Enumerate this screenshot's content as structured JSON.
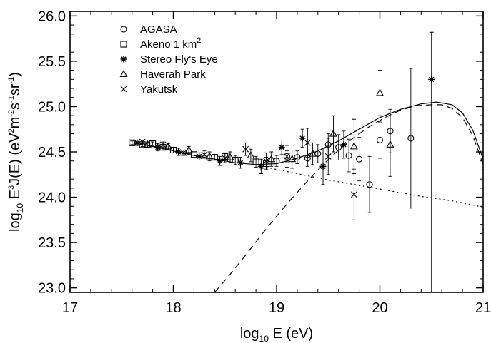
{
  "chart_data": {
    "type": "scatter",
    "title": "",
    "x_axis": {
      "label_main": "log",
      "label_sub": "10",
      "label_rest": " E (eV)",
      "range": [
        17,
        21
      ],
      "ticks": [
        17,
        18,
        19,
        20,
        21
      ],
      "tick_labels": [
        "17",
        "18",
        "19",
        "20",
        "21"
      ]
    },
    "y_axis": {
      "label_parts": [
        {
          "t": "log",
          "s": "n"
        },
        {
          "t": "10",
          "s": "sub"
        },
        {
          "t": " E",
          "s": "n"
        },
        {
          "t": "3",
          "s": "sup"
        },
        {
          "t": "J(E) (eV",
          "s": "n"
        },
        {
          "t": "2",
          "s": "sup"
        },
        {
          "t": "m",
          "s": "n"
        },
        {
          "t": "-2",
          "s": "sup"
        },
        {
          "t": "s",
          "s": "n"
        },
        {
          "t": "-1",
          "s": "sup"
        },
        {
          "t": "sr",
          "s": "n"
        },
        {
          "t": "-1",
          "s": "sup"
        },
        {
          "t": ")",
          "s": "n"
        }
      ],
      "range": [
        22.95,
        26.05
      ],
      "ticks": [
        23.0,
        23.5,
        24.0,
        24.5,
        25.0,
        25.5,
        26.0
      ],
      "tick_labels": [
        "23.0",
        "23.5",
        "24.0",
        "24.5",
        "25.0",
        "25.5",
        "26.0"
      ]
    },
    "grid": false,
    "legend_position": "top-left",
    "legend": [
      {
        "key": "agasa",
        "marker": "circle",
        "label": "AGASA"
      },
      {
        "key": "akeno",
        "marker": "square",
        "label": "Akeno 1 km",
        "label_sup": "2"
      },
      {
        "key": "stereo",
        "marker": "asterisk",
        "label": "Stereo Fly's Eye"
      },
      {
        "key": "haverah",
        "marker": "triangle",
        "label": "Haverah Park"
      },
      {
        "key": "yakutsk",
        "marker": "cross",
        "label": "Yakutsk"
      }
    ],
    "series": [
      {
        "key": "akeno",
        "marker": "square",
        "points": [
          {
            "x": 17.6,
            "y": 24.6,
            "err": 0.02
          },
          {
            "x": 17.7,
            "y": 24.58,
            "err": 0.02
          },
          {
            "x": 17.8,
            "y": 24.59,
            "err": 0.02
          },
          {
            "x": 17.9,
            "y": 24.55,
            "err": 0.03
          },
          {
            "x": 18.0,
            "y": 24.52,
            "err": 0.03
          },
          {
            "x": 18.2,
            "y": 24.47,
            "err": 0.03
          },
          {
            "x": 18.4,
            "y": 24.44,
            "err": 0.03
          },
          {
            "x": 18.5,
            "y": 24.45,
            "err": 0.04
          },
          {
            "x": 18.6,
            "y": 24.41,
            "err": 0.05
          },
          {
            "x": 18.8,
            "y": 24.39,
            "err": 0.06
          },
          {
            "x": 18.9,
            "y": 24.37,
            "err": 0.07
          }
        ]
      },
      {
        "key": "agasa",
        "marker": "circle",
        "points": [
          {
            "x": 19.0,
            "y": 24.4,
            "err": 0.06
          },
          {
            "x": 19.1,
            "y": 24.45,
            "err": 0.06
          },
          {
            "x": 19.2,
            "y": 24.44,
            "err": 0.07
          },
          {
            "x": 19.3,
            "y": 24.43,
            "err": 0.09
          },
          {
            "x": 19.4,
            "y": 24.48,
            "err": 0.1
          },
          {
            "x": 19.5,
            "y": 24.58,
            "err": 0.12
          },
          {
            "x": 19.6,
            "y": 24.55,
            "err": 0.14
          },
          {
            "x": 19.7,
            "y": 24.46,
            "err": 0.18
          },
          {
            "x": 19.8,
            "y": 24.42,
            "err": 0.24
          },
          {
            "x": 19.9,
            "y": 24.14,
            "err": 0.31
          },
          {
            "x": 20.0,
            "y": 24.63,
            "err": 0.2
          },
          {
            "x": 20.1,
            "y": 24.73,
            "err": 0.24
          },
          {
            "x": 20.3,
            "y": 24.65,
            "err": 0.77
          }
        ]
      },
      {
        "key": "stereo",
        "marker": "asterisk",
        "points": [
          {
            "x": 17.65,
            "y": 24.6,
            "err": 0.03
          },
          {
            "x": 17.85,
            "y": 24.55,
            "err": 0.04
          },
          {
            "x": 18.05,
            "y": 24.5,
            "err": 0.04
          },
          {
            "x": 18.25,
            "y": 24.45,
            "err": 0.04
          },
          {
            "x": 18.45,
            "y": 24.4,
            "err": 0.05
          },
          {
            "x": 18.65,
            "y": 24.38,
            "err": 0.06
          },
          {
            "x": 18.85,
            "y": 24.34,
            "err": 0.08
          },
          {
            "x": 19.05,
            "y": 24.55,
            "err": 0.08
          },
          {
            "x": 19.25,
            "y": 24.65,
            "err": 0.1
          },
          {
            "x": 19.45,
            "y": 24.34,
            "err": 0.2
          },
          {
            "x": 19.65,
            "y": 24.58,
            "err": 0.15
          },
          {
            "x": 20.5,
            "y": 25.3,
            "err": 0.0
          }
        ]
      },
      {
        "key": "haverah",
        "marker": "triangle",
        "points": [
          {
            "x": 17.75,
            "y": 24.58,
            "err": 0.03
          },
          {
            "x": 17.95,
            "y": 24.56,
            "err": 0.03
          },
          {
            "x": 18.15,
            "y": 24.52,
            "err": 0.04
          },
          {
            "x": 18.35,
            "y": 24.45,
            "err": 0.05
          },
          {
            "x": 18.55,
            "y": 24.44,
            "err": 0.06
          },
          {
            "x": 18.75,
            "y": 24.46,
            "err": 0.07
          },
          {
            "x": 18.95,
            "y": 24.42,
            "err": 0.08
          },
          {
            "x": 19.15,
            "y": 24.42,
            "err": 0.1
          },
          {
            "x": 19.35,
            "y": 24.48,
            "err": 0.12
          },
          {
            "x": 19.55,
            "y": 24.7,
            "err": 0.2
          },
          {
            "x": 19.75,
            "y": 24.56,
            "err": 0.3
          },
          {
            "x": 20.0,
            "y": 25.15,
            "err": 0.25
          },
          {
            "x": 20.1,
            "y": 24.58,
            "err": 0.35
          }
        ]
      },
      {
        "key": "yakutsk",
        "marker": "cross",
        "points": [
          {
            "x": 17.7,
            "y": 24.61,
            "err": 0.02
          },
          {
            "x": 17.9,
            "y": 24.58,
            "err": 0.03
          },
          {
            "x": 18.1,
            "y": 24.49,
            "err": 0.03
          },
          {
            "x": 18.3,
            "y": 24.47,
            "err": 0.04
          },
          {
            "x": 18.5,
            "y": 24.43,
            "err": 0.05
          },
          {
            "x": 18.7,
            "y": 24.53,
            "err": 0.07
          },
          {
            "x": 18.9,
            "y": 24.4,
            "err": 0.09
          },
          {
            "x": 19.1,
            "y": 24.45,
            "err": 0.12
          },
          {
            "x": 19.3,
            "y": 24.6,
            "err": 0.16
          },
          {
            "x": 19.5,
            "y": 24.45,
            "err": 0.2
          },
          {
            "x": 19.75,
            "y": 24.03,
            "err": 0.28
          }
        ]
      }
    ],
    "curves": [
      {
        "key": "dotted",
        "dash": "2,4",
        "points": [
          [
            18.9,
            24.33
          ],
          [
            19.2,
            24.26
          ],
          [
            19.5,
            24.19
          ],
          [
            19.8,
            24.13
          ],
          [
            20.1,
            24.07
          ],
          [
            20.4,
            24.01
          ],
          [
            20.7,
            23.96
          ],
          [
            21.0,
            23.89
          ]
        ]
      },
      {
        "key": "dashed",
        "dash": "9,6",
        "points": [
          [
            18.4,
            22.95
          ],
          [
            18.55,
            23.15
          ],
          [
            18.7,
            23.36
          ],
          [
            18.85,
            23.58
          ],
          [
            19.0,
            23.79
          ],
          [
            19.15,
            23.99
          ],
          [
            19.3,
            24.18
          ],
          [
            19.45,
            24.36
          ],
          [
            19.6,
            24.52
          ],
          [
            19.75,
            24.66
          ],
          [
            19.9,
            24.78
          ],
          [
            20.05,
            24.88
          ],
          [
            20.2,
            24.96
          ],
          [
            20.35,
            25.01
          ],
          [
            20.5,
            25.02
          ],
          [
            20.6,
            25.02
          ],
          [
            20.7,
            24.98
          ],
          [
            20.8,
            24.88
          ],
          [
            20.9,
            24.68
          ],
          [
            21.0,
            24.36
          ]
        ]
      },
      {
        "key": "solid",
        "dash": "",
        "points": [
          [
            17.6,
            24.6
          ],
          [
            17.8,
            24.56
          ],
          [
            18.0,
            24.51
          ],
          [
            18.2,
            24.46
          ],
          [
            18.4,
            24.42
          ],
          [
            18.6,
            24.38
          ],
          [
            18.8,
            24.36
          ],
          [
            19.0,
            24.37
          ],
          [
            19.2,
            24.43
          ],
          [
            19.4,
            24.51
          ],
          [
            19.6,
            24.62
          ],
          [
            19.8,
            24.75
          ],
          [
            20.0,
            24.88
          ],
          [
            20.2,
            24.97
          ],
          [
            20.4,
            25.03
          ],
          [
            20.55,
            25.05
          ],
          [
            20.7,
            25.02
          ],
          [
            20.8,
            24.93
          ],
          [
            20.9,
            24.74
          ],
          [
            21.0,
            24.42
          ]
        ]
      }
    ]
  }
}
